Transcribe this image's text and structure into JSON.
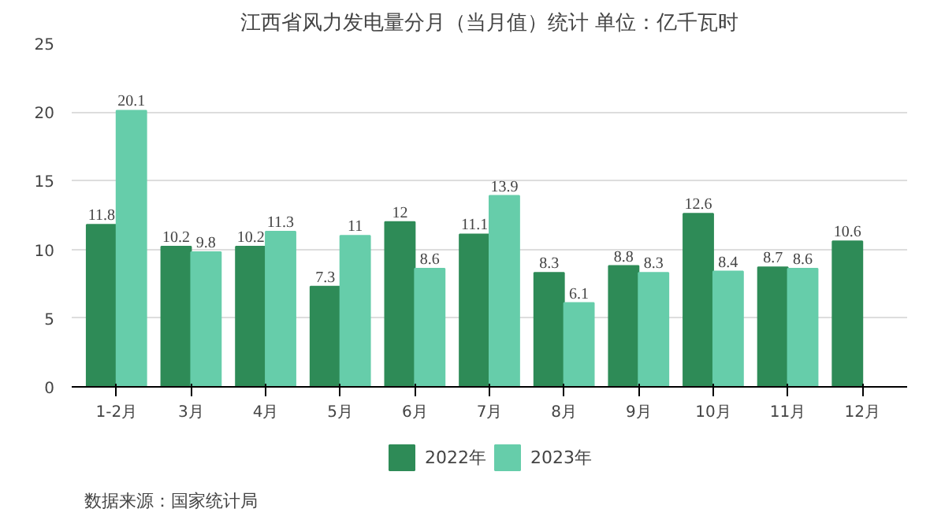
{
  "chart_data": {
    "type": "bar",
    "title": "江西省风力发电量分月（当月值）统计 单位：亿千瓦时",
    "categories": [
      "1-2月",
      "3月",
      "4月",
      "5月",
      "6月",
      "7月",
      "8月",
      "9月",
      "10月",
      "11月",
      "12月"
    ],
    "series": [
      {
        "name": "2022年",
        "color": "#2e8b57",
        "values": [
          11.8,
          10.2,
          10.2,
          7.3,
          12,
          11.1,
          8.3,
          8.8,
          12.6,
          8.7,
          10.6
        ]
      },
      {
        "name": "2023年",
        "color": "#66cdaa",
        "values": [
          20.1,
          9.8,
          11.3,
          11,
          8.6,
          13.9,
          6.1,
          8.3,
          8.4,
          8.6,
          null
        ]
      }
    ],
    "ylim": [
      0,
      25
    ],
    "yticks": [
      0,
      5,
      10,
      15,
      20,
      25
    ],
    "grid": "y",
    "legend": "bottom",
    "data_labels": true,
    "annotations": [
      "数据来源：国家统计局"
    ]
  }
}
